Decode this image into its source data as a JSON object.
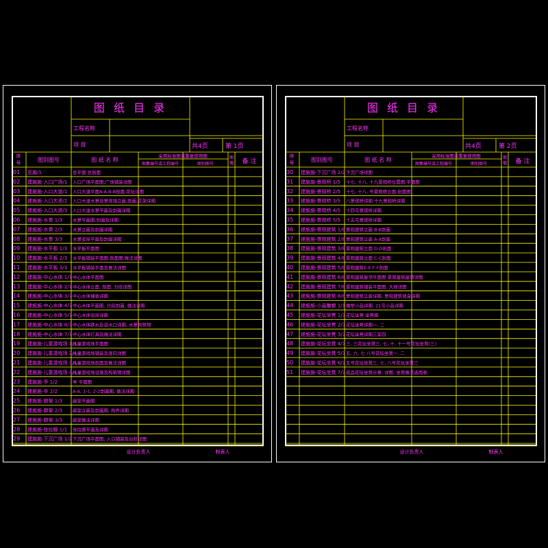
{
  "sheets": [
    {
      "title": "图 纸 目 录",
      "project_name_label": "工程名称",
      "item_label": "项   目",
      "total_pages": "共4页",
      "page_no": "第 1页",
      "header": {
        "seq": "序号",
        "drawing_no": "图别图号",
        "drawing_name": "图 纸 名 称",
        "standard_group": "采用标准图或重复使用图",
        "std_name": "图集编号或工程编号",
        "std_no": "图别图号",
        "size": "图幅",
        "remark": "备 注"
      },
      "rows": [
        {
          "seq": "01",
          "no": "总施/1",
          "name": "总平面  总剖面"
        },
        {
          "seq": "02",
          "no": "建施施-入口广场/1",
          "name": "入口广场平面图,广场铺装详图"
        },
        {
          "seq": "03",
          "no": "建施施-入口大道/1",
          "name": "入口大道平面A-A,B-B剖面,花坛详图"
        },
        {
          "seq": "04",
          "no": "建施施-入口大道/2",
          "name": "入口大道水景及景观墙立面,剖面,花架详图"
        },
        {
          "seq": "05",
          "no": "建施施-入口大道/3",
          "name": "入口大道水景平面及剖面详图"
        },
        {
          "seq": "06",
          "no": "建施施-水景 1/3",
          "name": "水景平面图,剖面及详图"
        },
        {
          "seq": "07",
          "no": "建施施-水景 2/3",
          "name": "水景立面及剖面详图"
        },
        {
          "seq": "08",
          "no": "建施施-水景 3/3",
          "name": "水景驳岸平面及剖面详图"
        },
        {
          "seq": "09",
          "no": "建施施-水平板 1/3",
          "name": "水平板平面图"
        },
        {
          "seq": "10",
          "no": "建施施-水平板 2/3",
          "name": "水平板铺装平面图,剖面图,做法详图"
        },
        {
          "seq": "11",
          "no": "建施施-水平板 3/3",
          "name": "水平板铺装平面及做法详图"
        },
        {
          "seq": "12",
          "no": "建施施-中心水体 1/7",
          "name": "中心水体平面图"
        },
        {
          "seq": "13",
          "no": "建施施-中心水体 2/7",
          "name": "中心水体立面,  剖面,  分段详图"
        },
        {
          "seq": "14",
          "no": "建施施-中心水体 3/7",
          "name": "中心水体铺装详图"
        },
        {
          "seq": "15",
          "no": "建施施-中心水体 4/7",
          "name": "中心水体平面图,  分段剖面,  做法详图"
        },
        {
          "seq": "16",
          "no": "建施施-中心水体 5/7",
          "name": "中心水体驳岸详图"
        },
        {
          "seq": "17",
          "no": "建施施-中心水体 6/7",
          "name": "中心水体跌水及溢水口详图,  水景构筑物"
        },
        {
          "seq": "18",
          "no": "建施施-中心水体 7/7",
          "name": "中心水体灯具及做法详图"
        },
        {
          "seq": "19",
          "no": "建施施-儿童游戏场 1/4",
          "name": "儿童游戏场平面图"
        },
        {
          "seq": "20",
          "no": "建施施-儿童游戏场 2/4",
          "name": "儿童游戏场铺装及竖向详图"
        },
        {
          "seq": "21",
          "no": "建施施-儿童游戏场 3/4",
          "name": "儿童游戏场剖面及做法详图"
        },
        {
          "seq": "22",
          "no": "建施施-儿童游戏场 4/4",
          "name": "儿童游戏场设施及构筑物详图"
        },
        {
          "seq": "23",
          "no": "建施施-亭 1/2",
          "name": "亭 平面图"
        },
        {
          "seq": "24",
          "no": "建施施-亭 2/2",
          "name": "A-A, 1-1, 2-2剖面图,  做法详图"
        },
        {
          "seq": "25",
          "no": "建施施-廊架 1/3",
          "name": "廊架平面图"
        },
        {
          "seq": "26",
          "no": "建施施-廊架 2/3",
          "name": "廊架立面及剖面图,  构件详图"
        },
        {
          "seq": "27",
          "no": "建施施-廊架 3/3",
          "name": "廊架做法详图"
        },
        {
          "seq": "28",
          "no": "建施施-张拉膜 1/1",
          "name": "张拉膜平面及详图"
        },
        {
          "seq": "29",
          "no": "建施施-下沉广场 1/2",
          "name": "下沉广场平面图,  入口铺装及台阶详图"
        }
      ],
      "footer_left": "设计负责人",
      "footer_right": "制表人"
    },
    {
      "title": "图 纸 目 录",
      "project_name_label": "工程名称",
      "item_label": "项   目",
      "total_pages": "共4页",
      "page_no": "第 2页",
      "header": {
        "seq": "序号",
        "drawing_no": "图别图号",
        "drawing_name": "图 纸 名 称",
        "standard_group": "采用标准图或重复使用图",
        "std_name": "图集编号或工程编号",
        "std_no": "图别图号",
        "size": "图幅",
        "remark": "备 注"
      },
      "rows": [
        {
          "seq": "30",
          "no": "建施施-下沉广场 2/2",
          "name": "下沉广场详图"
        },
        {
          "seq": "31",
          "no": "建施施-景观桥 1/5",
          "name": "十七,  十八,  十九景观桥位置图,平面图"
        },
        {
          "seq": "32",
          "no": "建施施-景观桥 2/5",
          "name": "十七,  十八,  号景观桥立面,剖面图"
        },
        {
          "seq": "33",
          "no": "建施施-景观桥 3/5",
          "name": "八景观桥详图  十九景观桥详图"
        },
        {
          "seq": "34",
          "no": "建施施-景观桥 4/5",
          "name": "十四号景观桥详图"
        },
        {
          "seq": "35",
          "no": "建施施-景观桥 5/5",
          "name": "十五号景观桥详图"
        },
        {
          "seq": "36",
          "no": "建施施-景观建筑 1/8",
          "name": "景观建筑立面 B-B剖面"
        },
        {
          "seq": "37",
          "no": "建施施-景观建筑 2/8",
          "name": "景观建筑立面 A-A剖面"
        },
        {
          "seq": "38",
          "no": "建施施-景观建筑 3/8",
          "name": "景观建筑立面 D-D剖面"
        },
        {
          "seq": "39",
          "no": "建施施-景观建筑 4/8",
          "name": "景观建筑立面 C-C剖面"
        },
        {
          "seq": "40",
          "no": "建施施-景观建筑 5/8",
          "name": "景观建筑E-E F-F剖面"
        },
        {
          "seq": "41",
          "no": "建施施-景观建筑 6/8",
          "name": "景观建筑屋顶平面图  景观建筑屋顶详图"
        },
        {
          "seq": "42",
          "no": "建施施-景观建筑 7/8",
          "name": "景观建筑铺装平面图,  大样详图"
        },
        {
          "seq": "43",
          "no": "建施施-景观建筑 8/8",
          "name": "景观建筑立面详图,  景观建筑墙身详图"
        },
        {
          "seq": "44",
          "no": "建施施-小品雕塑 1/1",
          "name": "雕塑小品详图,  21号小品详图"
        },
        {
          "seq": "45",
          "no": "建施施-花坛坐凳 1/7",
          "name": "花坛坐凳  坐凳图"
        },
        {
          "seq": "46",
          "no": "建施施-花坛坐凳 2/7",
          "name": "花坛坐凳详图一, 二"
        },
        {
          "seq": "47",
          "no": "建施施-花坛坐凳 3/7",
          "name": "花坛坐凳详图三至四"
        },
        {
          "seq": "48",
          "no": "建施施-花坛坐凳 4/7",
          "name": "三, 三花坛坐凳三, 七, 十, 十一号花坛坐凳(三)"
        },
        {
          "seq": "49",
          "no": "建施施-花坛坐凳 5/7",
          "name": "五, 六, 七  八号花坛坐凳一, 二"
        },
        {
          "seq": "50",
          "no": "建施施-花坛坐凳 6/7",
          "name": "五号花坛坐凳三,  七,  八号花坛坐凳三"
        },
        {
          "seq": "51",
          "no": "建施施-花坛坐凳 7/7",
          "name": "成品花坛坐凳示意,  详图,  坐凳做法选用表"
        }
      ],
      "footer_left": "设计负责人",
      "footer_right": "制表人"
    }
  ]
}
